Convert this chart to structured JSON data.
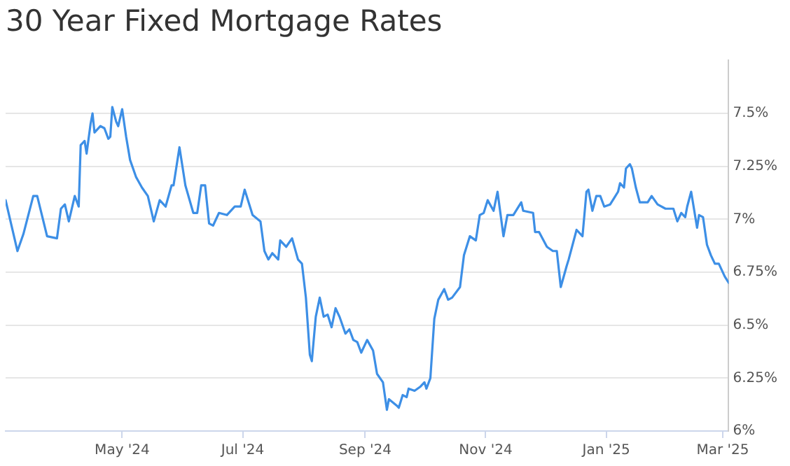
{
  "chart_data": {
    "type": "line",
    "title": "30 Year Fixed Mortgage Rates",
    "x": [
      "2024-03-03",
      "2024-03-09",
      "2024-03-12",
      "2024-03-17",
      "2024-03-19",
      "2024-03-24",
      "2024-03-29",
      "2024-03-31",
      "2024-04-02",
      "2024-04-04",
      "2024-04-07",
      "2024-04-09",
      "2024-04-10",
      "2024-04-12",
      "2024-04-13",
      "2024-04-15",
      "2024-04-16",
      "2024-04-17",
      "2024-04-20",
      "2024-04-22",
      "2024-04-24",
      "2024-04-25",
      "2024-04-26",
      "2024-04-28",
      "2024-04-29",
      "2024-05-01",
      "2024-05-03",
      "2024-05-05",
      "2024-05-08",
      "2024-05-11",
      "2024-05-14",
      "2024-05-17",
      "2024-05-20",
      "2024-05-23",
      "2024-05-26",
      "2024-05-27",
      "2024-05-30",
      "2024-06-02",
      "2024-06-06",
      "2024-06-08",
      "2024-06-10",
      "2024-06-12",
      "2024-06-14",
      "2024-06-16",
      "2024-06-19",
      "2024-06-23",
      "2024-06-27",
      "2024-06-30",
      "2024-07-02",
      "2024-07-06",
      "2024-07-10",
      "2024-07-12",
      "2024-07-14",
      "2024-07-16",
      "2024-07-19",
      "2024-07-20",
      "2024-07-23",
      "2024-07-26",
      "2024-07-29",
      "2024-07-31",
      "2024-08-02",
      "2024-08-04",
      "2024-08-05",
      "2024-08-07",
      "2024-08-09",
      "2024-08-11",
      "2024-08-13",
      "2024-08-15",
      "2024-08-17",
      "2024-08-19",
      "2024-08-22",
      "2024-08-24",
      "2024-08-26",
      "2024-08-28",
      "2024-08-30",
      "2024-09-02",
      "2024-09-05",
      "2024-09-07",
      "2024-09-10",
      "2024-09-12",
      "2024-09-13",
      "2024-09-17",
      "2024-09-18",
      "2024-09-20",
      "2024-09-22",
      "2024-09-23",
      "2024-09-26",
      "2024-09-29",
      "2024-10-01",
      "2024-10-02",
      "2024-10-04",
      "2024-10-06",
      "2024-10-08",
      "2024-10-11",
      "2024-10-13",
      "2024-10-15",
      "2024-10-19",
      "2024-10-21",
      "2024-10-24",
      "2024-10-27",
      "2024-10-29",
      "2024-10-31",
      "2024-11-02",
      "2024-11-05",
      "2024-11-07",
      "2024-11-10",
      "2024-11-12",
      "2024-11-15",
      "2024-11-19",
      "2024-11-20",
      "2024-11-25",
      "2024-11-26",
      "2024-11-28",
      "2024-12-02",
      "2024-12-05",
      "2024-12-07",
      "2024-12-09",
      "2024-12-12",
      "2024-12-13",
      "2024-12-17",
      "2024-12-20",
      "2024-12-22",
      "2024-12-23",
      "2024-12-25",
      "2024-12-27",
      "2024-12-29",
      "2024-12-31",
      "2025-01-03",
      "2025-01-05",
      "2025-01-07",
      "2025-01-08",
      "2025-01-10",
      "2025-01-11",
      "2025-01-13",
      "2025-01-14",
      "2025-01-16",
      "2025-01-18",
      "2025-01-22",
      "2025-01-24",
      "2025-01-27",
      "2025-01-31",
      "2025-02-04",
      "2025-02-06",
      "2025-02-08",
      "2025-02-10",
      "2025-02-11",
      "2025-02-13",
      "2025-02-16",
      "2025-02-17",
      "2025-02-19",
      "2025-02-21",
      "2025-02-23",
      "2025-02-25",
      "2025-02-27",
      "2025-03-02",
      "2025-03-04"
    ],
    "series": [
      {
        "color": "#3d8fe6",
        "values": [
          7.09,
          6.85,
          6.93,
          7.11,
          7.11,
          6.92,
          6.91,
          7.05,
          7.07,
          6.99,
          7.11,
          7.06,
          7.35,
          7.37,
          7.31,
          7.45,
          7.5,
          7.41,
          7.44,
          7.43,
          7.38,
          7.39,
          7.53,
          7.46,
          7.44,
          7.52,
          7.39,
          7.28,
          7.2,
          7.15,
          7.11,
          6.99,
          7.09,
          7.06,
          7.16,
          7.16,
          7.34,
          7.16,
          7.03,
          7.03,
          7.16,
          7.16,
          6.98,
          6.97,
          7.03,
          7.02,
          7.06,
          7.06,
          7.14,
          7.02,
          6.99,
          6.85,
          6.81,
          6.84,
          6.81,
          6.9,
          6.87,
          6.91,
          6.81,
          6.79,
          6.63,
          6.36,
          6.33,
          6.54,
          6.63,
          6.54,
          6.55,
          6.49,
          6.58,
          6.54,
          6.46,
          6.48,
          6.43,
          6.42,
          6.37,
          6.43,
          6.38,
          6.27,
          6.23,
          6.1,
          6.15,
          6.12,
          6.11,
          6.17,
          6.16,
          6.2,
          6.19,
          6.21,
          6.23,
          6.2,
          6.25,
          6.53,
          6.62,
          6.67,
          6.62,
          6.63,
          6.68,
          6.83,
          6.92,
          6.9,
          7.02,
          7.03,
          7.09,
          7.04,
          7.13,
          6.92,
          7.02,
          7.02,
          7.08,
          7.04,
          7.03,
          6.94,
          6.94,
          6.87,
          6.85,
          6.85,
          6.68,
          6.78,
          6.81,
          6.95,
          6.92,
          7.13,
          7.14,
          7.04,
          7.11,
          7.11,
          7.06,
          7.07,
          7.1,
          7.13,
          7.17,
          7.15,
          7.24,
          7.26,
          7.24,
          7.15,
          7.08,
          7.08,
          7.11,
          7.07,
          7.05,
          7.05,
          6.99,
          7.03,
          7.01,
          7.06,
          7.13,
          6.96,
          7.02,
          7.01,
          6.88,
          6.83,
          6.79,
          6.79,
          6.73,
          6.7
        ]
      }
    ],
    "xlim": [
      "2024-03-03",
      "2025-03-04"
    ],
    "xticks": [
      {
        "value": "2024-05-01",
        "label": "May '24"
      },
      {
        "value": "2024-07-01",
        "label": "Jul '24"
      },
      {
        "value": "2024-09-01",
        "label": "Sep '24"
      },
      {
        "value": "2024-11-01",
        "label": "Nov '24"
      },
      {
        "value": "2025-01-01",
        "label": "Jan '25"
      },
      {
        "value": "2025-03-01",
        "label": "Mar '25"
      }
    ],
    "ylim": [
      6,
      7.75
    ],
    "yticks": [
      {
        "value": 6,
        "label": "6%"
      },
      {
        "value": 6.25,
        "label": "6.25%"
      },
      {
        "value": 6.5,
        "label": "6.5%"
      },
      {
        "value": 6.75,
        "label": "6.75%"
      },
      {
        "value": 7,
        "label": "7%"
      },
      {
        "value": 7.25,
        "label": "7.25%"
      },
      {
        "value": 7.5,
        "label": "7.5%"
      }
    ],
    "grid": "y",
    "marker": "none",
    "line_style": "solid",
    "legend": false
  }
}
